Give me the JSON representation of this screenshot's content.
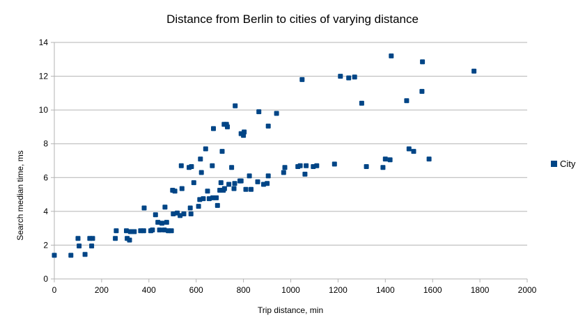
{
  "chart_data": {
    "type": "scatter",
    "title": "Distance from Berlin to cities of varying distance",
    "xlabel": "Trip distance, min",
    "ylabel": "Search median time, ms",
    "xlim": [
      0,
      2000
    ],
    "ylim": [
      0,
      14
    ],
    "xticks": [
      0,
      200,
      400,
      600,
      800,
      1000,
      1200,
      1400,
      1600,
      1800,
      2000
    ],
    "yticks": [
      0,
      2,
      4,
      6,
      8,
      10,
      12,
      14
    ],
    "grid": "horizontal",
    "legend_position": "right",
    "series": [
      {
        "name": "City",
        "color": "#004586",
        "points": [
          [
            0,
            1.4
          ],
          [
            70,
            1.4
          ],
          [
            100,
            2.4
          ],
          [
            105,
            1.95
          ],
          [
            130,
            1.45
          ],
          [
            150,
            2.4
          ],
          [
            158,
            1.95
          ],
          [
            162,
            2.4
          ],
          [
            258,
            2.4
          ],
          [
            262,
            2.85
          ],
          [
            305,
            2.85
          ],
          [
            308,
            2.4
          ],
          [
            318,
            2.3
          ],
          [
            322,
            2.8
          ],
          [
            338,
            2.8
          ],
          [
            365,
            2.85
          ],
          [
            378,
            2.85
          ],
          [
            380,
            4.2
          ],
          [
            408,
            2.85
          ],
          [
            415,
            2.9
          ],
          [
            428,
            3.8
          ],
          [
            438,
            3.35
          ],
          [
            445,
            2.9
          ],
          [
            455,
            3.3
          ],
          [
            465,
            2.9
          ],
          [
            468,
            4.25
          ],
          [
            475,
            3.35
          ],
          [
            482,
            2.85
          ],
          [
            495,
            2.85
          ],
          [
            500,
            5.25
          ],
          [
            503,
            3.85
          ],
          [
            510,
            5.2
          ],
          [
            520,
            3.9
          ],
          [
            532,
            3.75
          ],
          [
            537,
            6.7
          ],
          [
            540,
            5.35
          ],
          [
            548,
            3.85
          ],
          [
            570,
            6.6
          ],
          [
            575,
            4.2
          ],
          [
            578,
            3.85
          ],
          [
            580,
            6.65
          ],
          [
            590,
            5.7
          ],
          [
            610,
            4.3
          ],
          [
            615,
            4.7
          ],
          [
            618,
            7.1
          ],
          [
            622,
            6.3
          ],
          [
            630,
            4.75
          ],
          [
            640,
            7.7
          ],
          [
            648,
            5.2
          ],
          [
            655,
            4.75
          ],
          [
            668,
            6.7
          ],
          [
            670,
            4.8
          ],
          [
            673,
            8.9
          ],
          [
            685,
            4.8
          ],
          [
            690,
            4.35
          ],
          [
            700,
            5.25
          ],
          [
            705,
            5.7
          ],
          [
            710,
            7.55
          ],
          [
            715,
            5.25
          ],
          [
            720,
            5.35
          ],
          [
            718,
            9.15
          ],
          [
            728,
            9.15
          ],
          [
            732,
            9.0
          ],
          [
            738,
            5.6
          ],
          [
            750,
            6.6
          ],
          [
            760,
            5.35
          ],
          [
            763,
            5.65
          ],
          [
            765,
            10.25
          ],
          [
            785,
            5.8
          ],
          [
            790,
            8.6
          ],
          [
            790,
            5.8
          ],
          [
            800,
            8.5
          ],
          [
            803,
            8.7
          ],
          [
            810,
            5.3
          ],
          [
            825,
            6.1
          ],
          [
            832,
            5.3
          ],
          [
            860,
            5.75
          ],
          [
            865,
            9.9
          ],
          [
            885,
            5.6
          ],
          [
            900,
            5.65
          ],
          [
            905,
            9.05
          ],
          [
            905,
            6.1
          ],
          [
            940,
            9.8
          ],
          [
            970,
            6.3
          ],
          [
            975,
            6.6
          ],
          [
            1030,
            6.65
          ],
          [
            1040,
            6.7
          ],
          [
            1048,
            11.8
          ],
          [
            1060,
            6.2
          ],
          [
            1065,
            6.7
          ],
          [
            1095,
            6.65
          ],
          [
            1110,
            6.7
          ],
          [
            1185,
            6.8
          ],
          [
            1210,
            12.0
          ],
          [
            1245,
            11.9
          ],
          [
            1270,
            11.95
          ],
          [
            1300,
            10.4
          ],
          [
            1320,
            6.65
          ],
          [
            1390,
            6.6
          ],
          [
            1400,
            7.1
          ],
          [
            1420,
            7.05
          ],
          [
            1425,
            13.2
          ],
          [
            1490,
            10.55
          ],
          [
            1500,
            7.7
          ],
          [
            1520,
            7.55
          ],
          [
            1555,
            11.1
          ],
          [
            1557,
            12.85
          ],
          [
            1585,
            7.1
          ],
          [
            1775,
            12.3
          ]
        ]
      }
    ]
  }
}
